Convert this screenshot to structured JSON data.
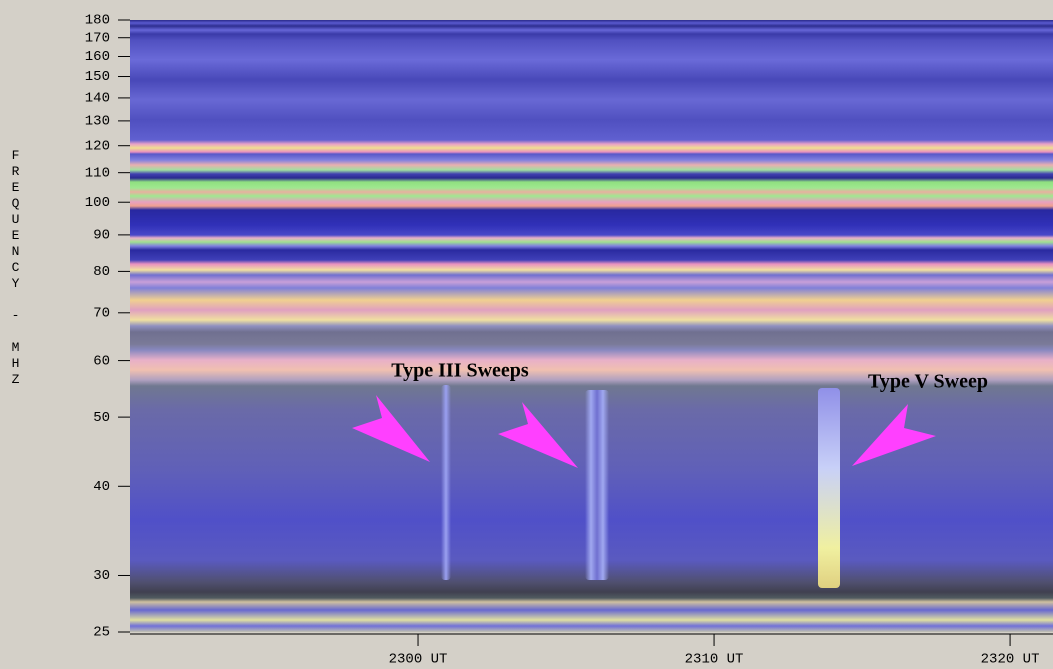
{
  "chart_data": {
    "type": "spectrogram",
    "ylabel": "FREQUENCY - MHZ",
    "ylim": [
      25,
      180
    ],
    "ylog": true,
    "yticks": [
      25,
      30,
      40,
      50,
      60,
      70,
      80,
      90,
      100,
      110,
      120,
      130,
      140,
      150,
      160,
      170,
      180
    ],
    "xlim": [
      1370.27,
      1401.45
    ],
    "xticks": [
      {
        "value": 1380,
        "label": "2300 UT"
      },
      {
        "value": 1390,
        "label": "2310 UT"
      },
      {
        "value": 1400,
        "label": "2320 UT"
      }
    ],
    "grid": false,
    "annotations": [
      "Type III Sweeps",
      "Type V Sweep"
    ]
  }
}
